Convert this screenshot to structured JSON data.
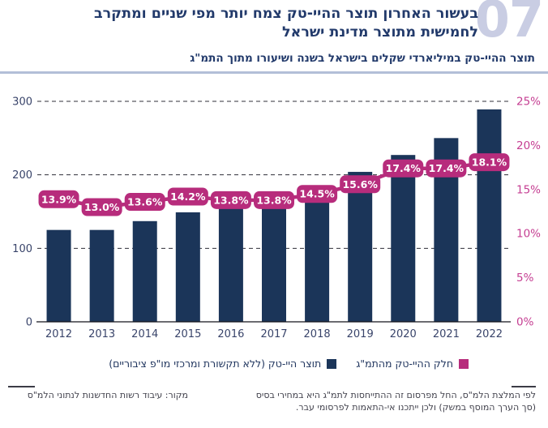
{
  "figure_number": "07",
  "header": {
    "title_line1": "בעשור האחרון תוצר ההיי-טק צמח יותר מפי שניים ומתקרב",
    "title_line2": "לחמישית מתוצר מדינת ישראל",
    "subtitle": "תוצר ההיי-טק במיליארדי שקלים בישראל בשנה ושיעורו מתוך התמ\"ג"
  },
  "colors": {
    "bar_navy": "#1b3559",
    "line_magenta": "#b72c7c",
    "right_axis_text": "#c53e92",
    "left_axis_text": "#39446a",
    "title_navy": "#223a6b",
    "figure_number_lavender": "#c9cde3",
    "gridline": "#2f2f38"
  },
  "chart_data": {
    "type": "combo: bar + line",
    "categories": [
      "2012",
      "2013",
      "2014",
      "2015",
      "2016",
      "2017",
      "2018",
      "2019",
      "2020",
      "2021",
      "2022"
    ],
    "series": [
      {
        "name": "תוצר היי-טק (ללא תקשורת ומרכזי מו\"פ ציבוריים)",
        "type": "bar",
        "axis": "left",
        "unit": "מיליארדי שקלים",
        "color": "#1b3559",
        "values": [
          125,
          125,
          137,
          149,
          155,
          158,
          167,
          204,
          227,
          250,
          289
        ]
      },
      {
        "name": "חלק ההיי-טק מהתמ\"ג",
        "type": "line",
        "axis": "right",
        "unit": "%",
        "color": "#b72c7c",
        "values": [
          13.9,
          13.0,
          13.6,
          14.2,
          13.8,
          13.8,
          14.5,
          15.6,
          17.4,
          17.4,
          18.1
        ],
        "labels": [
          "13.9%",
          "13.0%",
          "13.6%",
          "14.2%",
          "13.8%",
          "13.8%",
          "14.5%",
          "15.6%",
          "17.4%",
          "17.4%",
          "18.1%"
        ]
      }
    ],
    "left_axis": {
      "range": [
        0,
        300
      ],
      "ticks": [
        300,
        200,
        100,
        0
      ]
    },
    "right_axis": {
      "range": [
        0,
        25
      ],
      "ticks": [
        25,
        20,
        15,
        10,
        5,
        0
      ],
      "tick_suffix": "%"
    },
    "grid": "dashed horizontal lines at left-axis tick levels, solid baseline at 0",
    "legend_position": "bottom"
  },
  "legend": [
    {
      "label": "חלק ההיי-טק מהתמ\"ג",
      "color": "#b72c7c"
    },
    {
      "label": "תוצר היי-טק (ללא תקשורת ומרכזי מו\"פ ציבוריים)",
      "color": "#1b3559"
    }
  ],
  "notes": {
    "right_line1": "לפי המלצת הלמ\"ס, החל מפרסום זה ההתייחסות לתמ\"ג היא במחירי בסיס",
    "right_line2": "(סך הערך המוסף במשק) ולכן ייתכנו אי-התאמות לפרסומי עבר.",
    "source": "מקור: עיבוד רשות החדשנות לנתוני הלמ\"ס"
  }
}
